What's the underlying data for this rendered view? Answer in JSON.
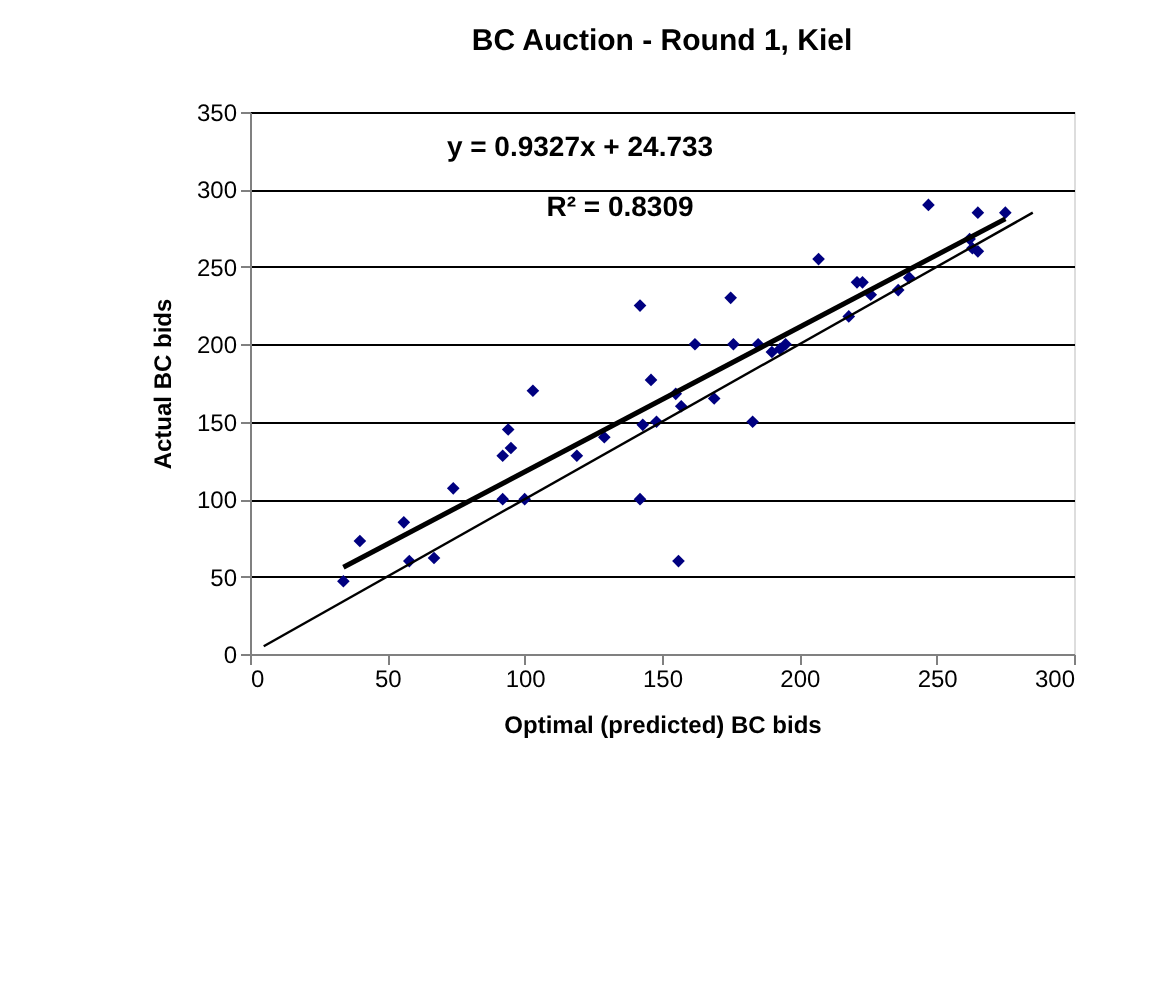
{
  "chart_data": {
    "type": "scatter",
    "title": "BC Auction - Round 1, Kiel",
    "xlabel": "Optimal (predicted) BC bids",
    "ylabel": "Actual BC bids",
    "xlim": [
      0,
      300
    ],
    "xticks": [
      0,
      50,
      100,
      150,
      200,
      250,
      300
    ],
    "ylim": [
      0,
      350
    ],
    "yticks": [
      0,
      50,
      100,
      150,
      200,
      250,
      300,
      350
    ],
    "grid": "y",
    "marker": "diamond",
    "annotations": [
      "y = 0.9327x + 24.733",
      "R² = 0.8309"
    ],
    "series": [
      {
        "color": "#000080",
        "x": [
          34,
          40,
          56,
          58,
          67,
          74,
          92,
          92,
          94,
          95,
          100,
          103,
          119,
          129,
          142,
          142,
          143,
          146,
          148,
          155,
          157,
          156,
          162,
          169,
          175,
          176,
          183,
          185,
          190,
          193,
          195,
          207,
          218,
          221,
          223,
          226,
          236,
          240,
          247,
          262,
          263,
          265,
          265,
          275
        ],
        "values": [
          47,
          73,
          85,
          60,
          62,
          107,
          100,
          128,
          145,
          133,
          100,
          170,
          128,
          140,
          225,
          100,
          148,
          177,
          150,
          168,
          160,
          60,
          200,
          165,
          230,
          200,
          150,
          200,
          195,
          197,
          200,
          255,
          218,
          240,
          240,
          232,
          235,
          243,
          290,
          268,
          262,
          285,
          260,
          285
        ]
      },
      {
        "type": "line",
        "color": "#000000",
        "line_style": "solid",
        "marker": "none",
        "x": [
          34,
          275
        ],
        "values": [
          56,
          281
        ]
      },
      {
        "type": "line",
        "color": "#000000",
        "line_style": "solid",
        "marker": "none",
        "x": [
          5,
          285
        ],
        "values": [
          5,
          285
        ]
      }
    ]
  }
}
